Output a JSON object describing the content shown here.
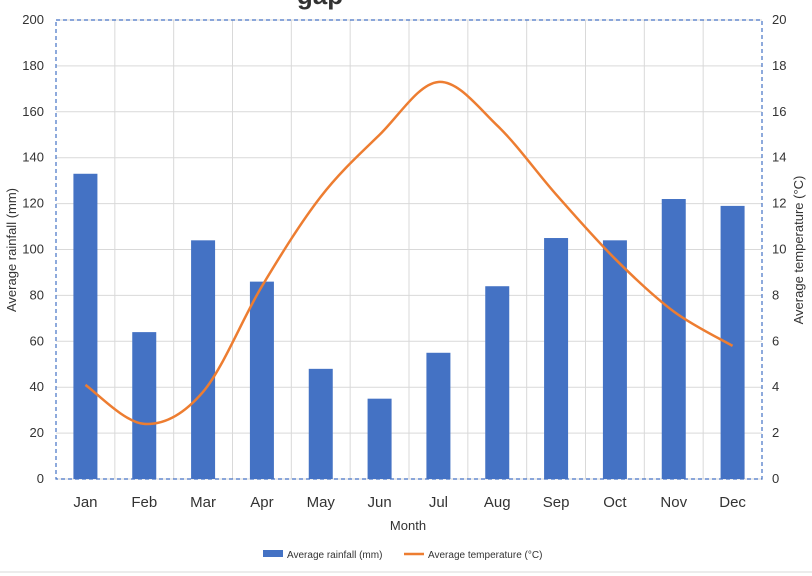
{
  "chart_data": {
    "type": "bar",
    "title_fragment": "gap",
    "categories": [
      "Jan",
      "Feb",
      "Mar",
      "Apr",
      "May",
      "Jun",
      "Jul",
      "Aug",
      "Sep",
      "Oct",
      "Nov",
      "Dec"
    ],
    "series": [
      {
        "name": "Average rainfall (mm)",
        "type": "bar",
        "axis": "left",
        "color": "#4472C4",
        "values": [
          133,
          64,
          104,
          86,
          48,
          35,
          55,
          84,
          105,
          104,
          122,
          119
        ]
      },
      {
        "name": "Average temperature (°C)",
        "type": "line",
        "axis": "right",
        "color": "#ED7D31",
        "values": [
          4.1,
          2.4,
          3.8,
          8.4,
          12.3,
          15.0,
          17.3,
          15.4,
          12.4,
          9.6,
          7.3,
          5.8
        ]
      }
    ],
    "xlabel": "Month",
    "ylabel_left": "Average rainfall (mm)",
    "ylabel_right": "Average temperature (°C)",
    "ylim_left": [
      0,
      200
    ],
    "ylim_right": [
      0,
      20
    ],
    "yticks_left": [
      "0",
      "20",
      "40",
      "60",
      "80",
      "100",
      "120",
      "140",
      "160",
      "180",
      "200"
    ],
    "yticks_right": [
      "0",
      "2",
      "4",
      "6",
      "8",
      "10",
      "12",
      "14",
      "16",
      "18",
      "20"
    ],
    "grid": true,
    "legend_position": "bottom"
  }
}
